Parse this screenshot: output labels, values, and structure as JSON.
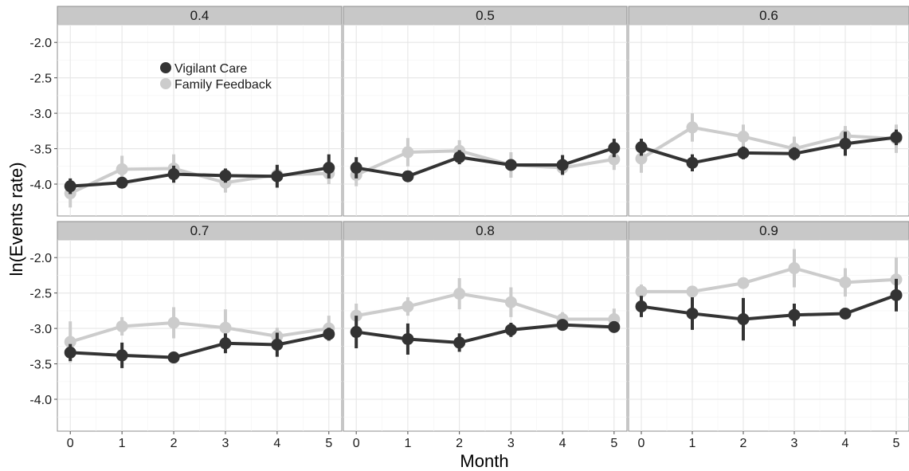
{
  "chart_data": {
    "type": "line",
    "xlabel": "Month",
    "ylabel": "ln(Events rate)",
    "xlim": [
      -0.25,
      5.25
    ],
    "ylim": [
      -4.45,
      -1.75
    ],
    "x_ticks": [
      0,
      1,
      2,
      3,
      4,
      5
    ],
    "x_tick_labels": [
      "0",
      "1",
      "2",
      "3",
      "4",
      "5"
    ],
    "y_ticks": [
      -2.0,
      -2.5,
      -3.0,
      -3.5,
      -4.0
    ],
    "y_tick_labels": [
      "-2.0",
      "-2.5",
      "-3.0",
      "-3.5",
      "-4.0"
    ],
    "grid": true,
    "legend": {
      "placement": "inside top-left of first panel",
      "entries": [
        "Vigilant Care",
        "Family Feedback"
      ]
    },
    "colors": {
      "Vigilant Care": "#333333",
      "Family Feedback": "#cccccc"
    },
    "panels": [
      {
        "label": "0.4",
        "series": [
          {
            "name": "Vigilant Care",
            "x": [
              0,
              1,
              2,
              3,
              4,
              5
            ],
            "y": [
              -4.03,
              -3.98,
              -3.86,
              -3.88,
              -3.89,
              -3.77
            ],
            "lower": [
              -4.14,
              -4.05,
              -3.98,
              -3.98,
              -4.05,
              -3.92
            ],
            "upper": [
              -3.92,
              -3.91,
              -3.74,
              -3.78,
              -3.73,
              -3.58
            ]
          },
          {
            "name": "Family Feedback",
            "x": [
              0,
              1,
              2,
              3,
              4,
              5
            ],
            "y": [
              -4.13,
              -3.79,
              -3.78,
              -3.98,
              -3.87,
              -3.85
            ],
            "lower": [
              -4.33,
              -3.98,
              -3.98,
              -4.12,
              -4.02,
              -4.0
            ],
            "upper": [
              -3.93,
              -3.6,
              -3.58,
              -3.84,
              -3.72,
              -3.7
            ]
          }
        ]
      },
      {
        "label": "0.5",
        "series": [
          {
            "name": "Vigilant Care",
            "x": [
              0,
              1,
              2,
              3,
              4,
              5
            ],
            "y": [
              -3.77,
              -3.89,
              -3.62,
              -3.73,
              -3.73,
              -3.49
            ],
            "lower": [
              -3.92,
              -3.95,
              -3.72,
              -3.8,
              -3.87,
              -3.62
            ],
            "upper": [
              -3.62,
              -3.83,
              -3.52,
              -3.66,
              -3.59,
              -3.36
            ]
          },
          {
            "name": "Family Feedback",
            "x": [
              0,
              1,
              2,
              3,
              4,
              5
            ],
            "y": [
              -3.87,
              -3.55,
              -3.53,
              -3.73,
              -3.77,
              -3.65
            ],
            "lower": [
              -4.03,
              -3.75,
              -3.68,
              -3.91,
              -3.86,
              -3.8
            ],
            "upper": [
              -3.71,
              -3.35,
              -3.38,
              -3.55,
              -3.68,
              -3.5
            ]
          }
        ]
      },
      {
        "label": "0.6",
        "series": [
          {
            "name": "Vigilant Care",
            "x": [
              0,
              1,
              2,
              3,
              4,
              5
            ],
            "y": [
              -3.48,
              -3.7,
              -3.56,
              -3.57,
              -3.43,
              -3.34
            ],
            "lower": [
              -3.6,
              -3.82,
              -3.65,
              -3.66,
              -3.6,
              -3.45
            ],
            "upper": [
              -3.36,
              -3.58,
              -3.47,
              -3.48,
              -3.26,
              -3.23
            ]
          },
          {
            "name": "Family Feedback",
            "x": [
              0,
              1,
              2,
              3,
              4,
              5
            ],
            "y": [
              -3.64,
              -3.2,
              -3.33,
              -3.5,
              -3.32,
              -3.36
            ],
            "lower": [
              -3.84,
              -3.4,
              -3.5,
              -3.67,
              -3.46,
              -3.56
            ],
            "upper": [
              -3.44,
              -3.0,
              -3.16,
              -3.33,
              -3.18,
              -3.16
            ]
          }
        ]
      },
      {
        "label": "0.7",
        "series": [
          {
            "name": "Vigilant Care",
            "x": [
              0,
              1,
              2,
              3,
              4,
              5
            ],
            "y": [
              -3.34,
              -3.38,
              -3.41,
              -3.21,
              -3.23,
              -3.08
            ],
            "lower": [
              -3.46,
              -3.56,
              -3.48,
              -3.35,
              -3.4,
              -3.17
            ],
            "upper": [
              -3.22,
              -3.2,
              -3.34,
              -3.07,
              -3.06,
              -2.99
            ]
          },
          {
            "name": "Family Feedback",
            "x": [
              0,
              1,
              2,
              3,
              4,
              5
            ],
            "y": [
              -3.19,
              -2.97,
              -2.92,
              -2.99,
              -3.11,
              -3.0
            ],
            "lower": [
              -3.48,
              -3.1,
              -3.14,
              -3.25,
              -3.23,
              -3.18
            ],
            "upper": [
              -2.9,
              -2.84,
              -2.7,
              -2.73,
              -2.99,
              -2.82
            ]
          }
        ]
      },
      {
        "label": "0.8",
        "series": [
          {
            "name": "Vigilant Care",
            "x": [
              0,
              1,
              2,
              3,
              4,
              5
            ],
            "y": [
              -3.05,
              -3.15,
              -3.2,
              -3.02,
              -2.95,
              -2.98
            ],
            "lower": [
              -3.28,
              -3.37,
              -3.33,
              -3.12,
              -3.01,
              -3.06
            ],
            "upper": [
              -2.82,
              -2.93,
              -3.07,
              -2.92,
              -2.89,
              -2.9
            ]
          },
          {
            "name": "Family Feedback",
            "x": [
              0,
              1,
              2,
              3,
              4,
              5
            ],
            "y": [
              -2.82,
              -2.69,
              -2.51,
              -2.63,
              -2.87,
              -2.87
            ],
            "lower": [
              -2.99,
              -2.82,
              -2.73,
              -2.84,
              -2.97,
              -3.02
            ],
            "upper": [
              -2.65,
              -2.56,
              -2.29,
              -2.42,
              -2.77,
              -2.72
            ]
          }
        ]
      },
      {
        "label": "0.9",
        "series": [
          {
            "name": "Vigilant Care",
            "x": [
              0,
              1,
              2,
              3,
              4,
              5
            ],
            "y": [
              -2.69,
              -2.79,
              -2.87,
              -2.81,
              -2.79,
              -2.53
            ],
            "lower": [
              -2.84,
              -3.02,
              -3.17,
              -2.97,
              -2.86,
              -2.76
            ],
            "upper": [
              -2.54,
              -2.56,
              -2.57,
              -2.65,
              -2.72,
              -2.3
            ]
          },
          {
            "name": "Family Feedback",
            "x": [
              0,
              1,
              2,
              3,
              4,
              5
            ],
            "y": [
              -2.48,
              -2.48,
              -2.36,
              -2.15,
              -2.35,
              -2.31
            ],
            "lower": [
              -2.58,
              -2.55,
              -2.43,
              -2.42,
              -2.55,
              -2.62
            ],
            "upper": [
              -2.38,
              -2.41,
              -2.29,
              -1.88,
              -2.15,
              -2.0
            ]
          }
        ]
      }
    ]
  }
}
